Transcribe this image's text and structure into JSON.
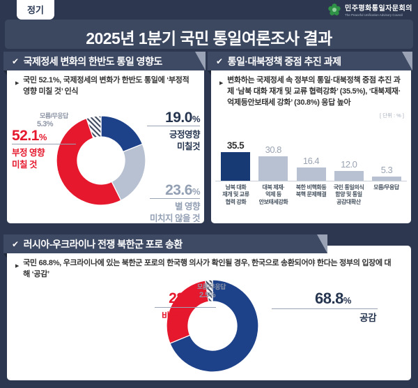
{
  "page": {
    "badge": "정기",
    "title": "2025년 1분기 국민 통일여론조사 결과",
    "logo": {
      "org_kr": "민주평화통일자문회의",
      "org_en": "The Peaceful Unification Advisory Council"
    }
  },
  "colors": {
    "background": "#2d3850",
    "ribbon": "#3e4a64",
    "red": "#e5182d",
    "blue": "#1e4289",
    "bar_navy": "#173a74",
    "light_gray": "#b7c1d1"
  },
  "panels": {
    "left": {
      "header": "국제정세 변화의 한반도 통일 영향도",
      "summary": "국민 52.1%, 국제정세의 변화가 한반도 통일에 ‘부정적 영향 미칠 것’ 인식",
      "donut_labels": {
        "negative": {
          "pct": "52.1",
          "unit": "%",
          "text": "부정 영향\n미칠 것"
        },
        "positive": {
          "pct": "19.0",
          "unit": "%",
          "text": "긍정영향\n미칠것"
        },
        "neutral": {
          "pct": "23.6",
          "unit": "%",
          "text": "별 영향\n미치지 않을 것"
        },
        "unknown": {
          "title": "모름/무응답",
          "pct": "5.3%"
        }
      }
    },
    "right": {
      "header": "통일·대북정책 중점 추진 과제",
      "summary": "변화하는 국제정세 속 정부의 통일·대북정책 중점 추진 과제 ‘남북 대화 재개 및 교류 협력강화’ (35.5%), ‘대북제재·억제등안보태세 강화’ (30.8%) 응답 높아",
      "unit_label": "[ 단위 : % ]"
    },
    "bottom": {
      "header": "러시아-우크라이나 전쟁 북한군 포로 송환",
      "summary": "국민 68.8%, 우크라이나에 있는 북한군 포로의 한국행 의사가 확인될 경우, 한국으로 송환되어야 한다는 정부의 입장에 대해 ‘공감’",
      "donut_labels": {
        "disagree": {
          "pct": "28.7",
          "unit": "%",
          "text": "비공감"
        },
        "agree": {
          "pct": "68.8",
          "unit": "%",
          "text": "공감"
        },
        "unknown": {
          "title": "모름/무응답",
          "pct": "2.5%"
        }
      }
    }
  },
  "chart_data": [
    {
      "id": "unification-impact-donut",
      "type": "pie",
      "donut": true,
      "title": "국제정세 변화의 한반도 통일 영향도",
      "unit": "%",
      "start": "top",
      "direction": "clockwise",
      "segments": [
        {
          "label": "긍정영향 미칠것",
          "value": 19.0,
          "color": "#1e4289"
        },
        {
          "label": "별 영향 미치지 않을 것",
          "value": 23.6,
          "color": "#b7c1d1"
        },
        {
          "label": "부정 영향 미칠 것",
          "value": 52.1,
          "color": "#e5182d"
        },
        {
          "label": "모름/무응답",
          "value": 5.3,
          "color": "hatched"
        }
      ]
    },
    {
      "id": "policy-task-bars",
      "type": "bar",
      "title": "통일·대북정책 중점 추진 과제",
      "unit": "%",
      "ylim": [
        0,
        40
      ],
      "categories": [
        [
          "남북 대화",
          "재개 및 교류",
          "협력 강화"
        ],
        [
          "대북 제재·",
          "억제 등",
          "안보태세강화"
        ],
        [
          "북한 비핵화등",
          "북핵 문제해결"
        ],
        [
          "국민 통일의식",
          "함양 및 통일",
          "공감대확산"
        ],
        [
          "모름/무응답"
        ]
      ],
      "values": [
        35.5,
        30.8,
        16.4,
        12.0,
        5.3
      ],
      "value_labels": [
        "35.5",
        "30.8",
        "16.4",
        "12.0",
        "5.3"
      ],
      "bar_colors": [
        "#173a74",
        "#b7c1d1",
        "#b7c1d1",
        "#b7c1d1",
        "#b7c1d1"
      ]
    },
    {
      "id": "pow-repatriation-donut",
      "type": "pie",
      "donut": true,
      "title": "러시아-우크라이나 전쟁 북한군 포로 송환",
      "unit": "%",
      "start": "top",
      "direction": "clockwise",
      "segments": [
        {
          "label": "공감",
          "value": 68.8,
          "color": "#1e4289"
        },
        {
          "label": "비공감",
          "value": 28.7,
          "color": "#e5182d"
        },
        {
          "label": "모름/무응답",
          "value": 2.5,
          "color": "hatched"
        }
      ]
    }
  ]
}
